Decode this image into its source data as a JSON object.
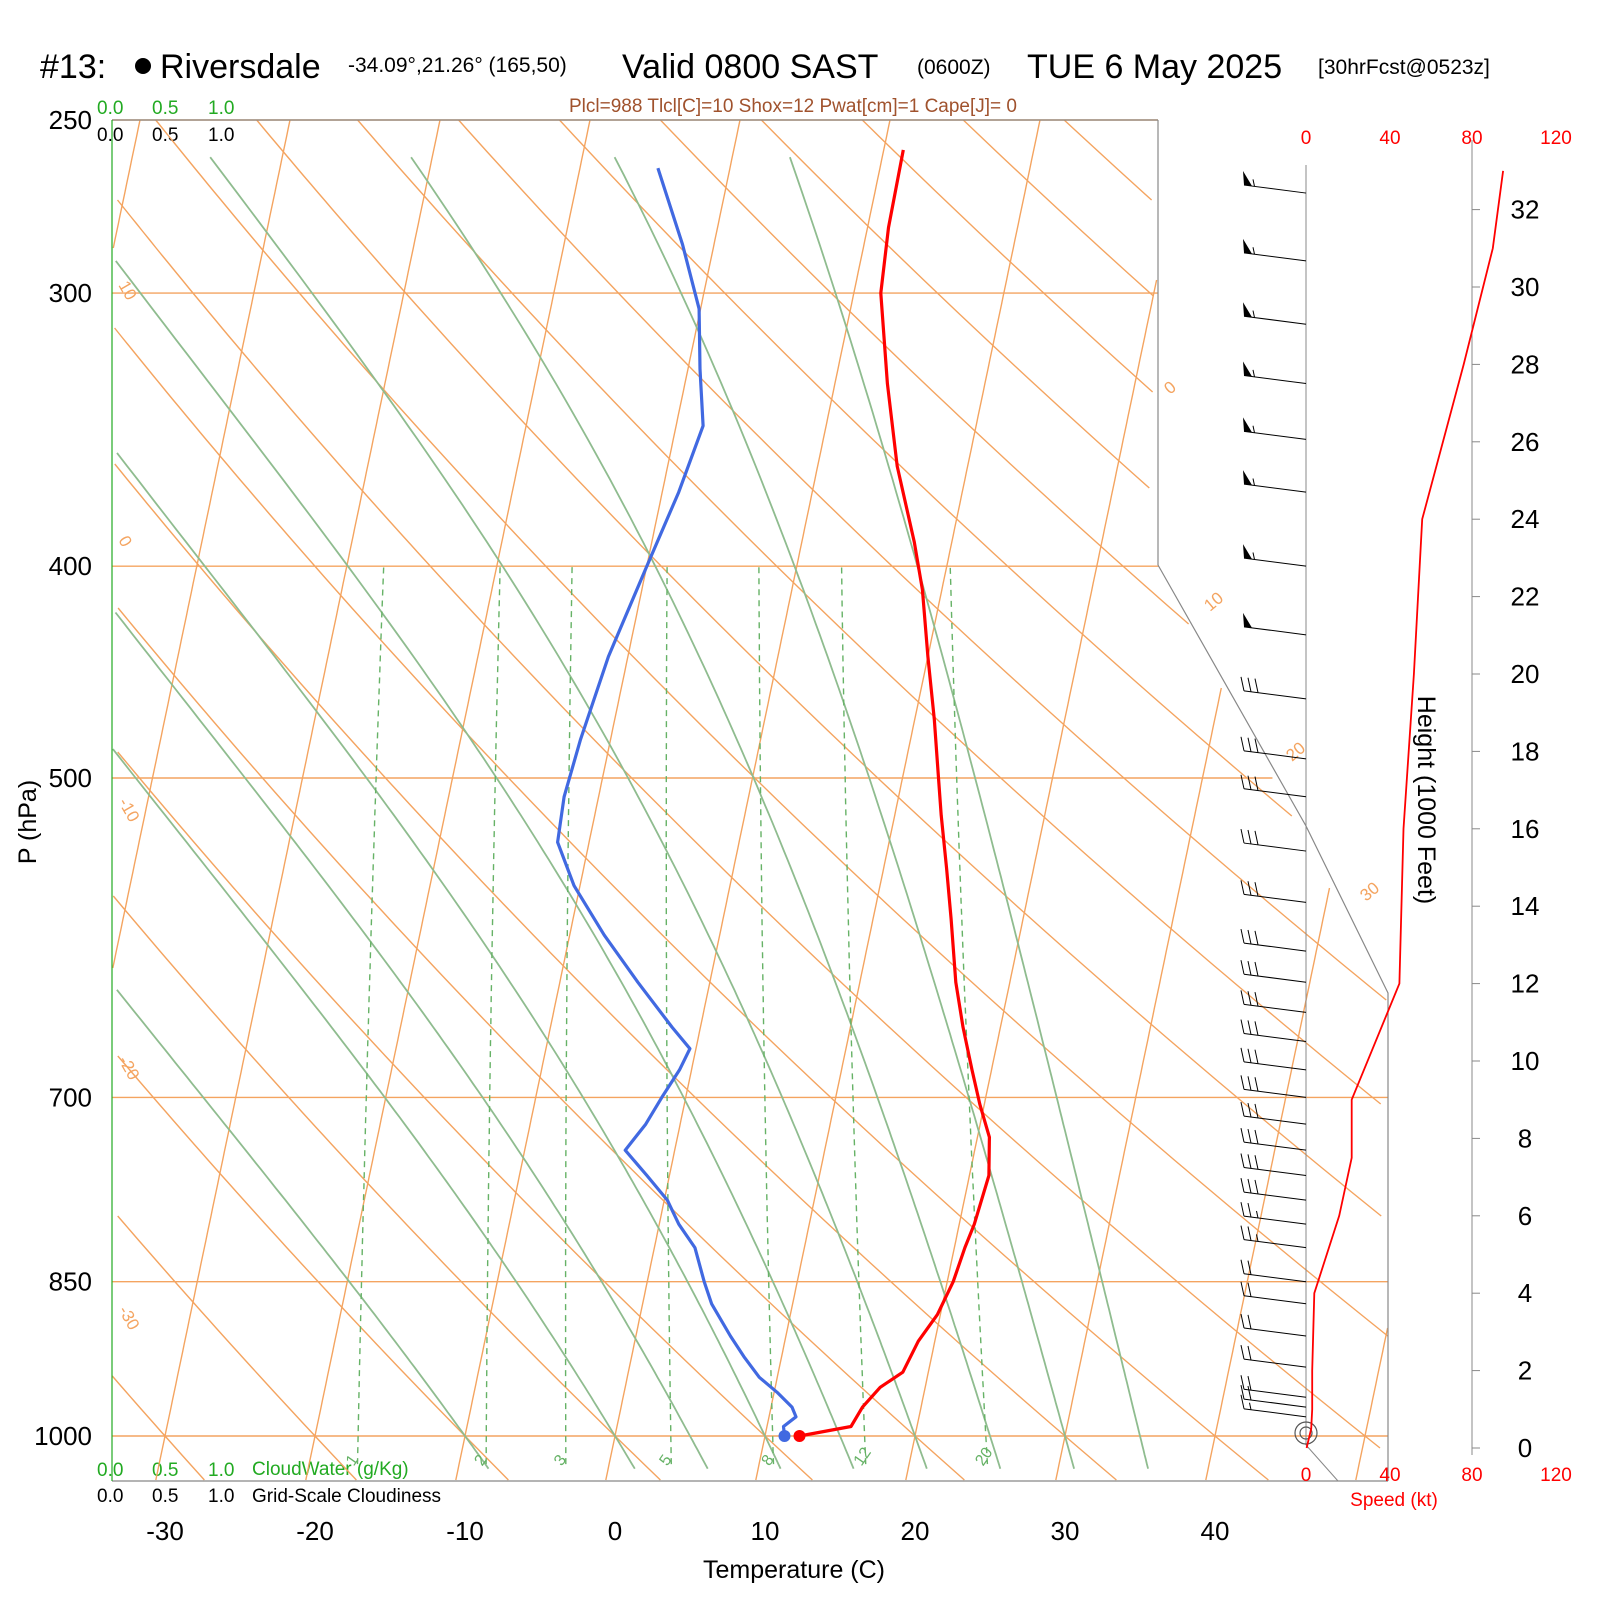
{
  "header": {
    "station_prefix": "#13:",
    "station_name": "Riversdale",
    "coords": "-34.09°,21.26° (165,50)",
    "valid_label": "Valid 0800 SAST",
    "zulu": "(0600Z)",
    "date": "TUE 6 May 2025",
    "forecast": "[30hrFcst@0523z]",
    "params": "Plcl=988 Tlcl[C]=10 Shox=12 Pwat[cm]=1 Cape[J]= 0"
  },
  "scales": {
    "cloudwater_ticks": [
      "0.0",
      "0.5",
      "1.0"
    ],
    "cloudiness_ticks": [
      "0.0",
      "0.5",
      "1.0"
    ],
    "cloudwater_label": "CloudWater (g/Kg)",
    "cloudiness_label": "Grid-Scale Cloudiness",
    "speed_ticks": [
      "0",
      "40",
      "80",
      "120"
    ],
    "speed_label": "Speed (kt)"
  },
  "axes": {
    "pressure_label": "P (hPa)",
    "temperature_label": "Temperature (C)",
    "height_label": "Height (1000 Feet)",
    "pressure_ticks": [
      250,
      300,
      400,
      500,
      700,
      850,
      1000
    ],
    "temperature_ticks": [
      -30,
      -20,
      -10,
      0,
      10,
      20,
      30,
      40
    ],
    "height_ticks": [
      0,
      2,
      4,
      6,
      8,
      10,
      12,
      14,
      16,
      18,
      20,
      22,
      24,
      26,
      28,
      30,
      32
    ]
  },
  "chart_data": {
    "type": "line",
    "series": [
      {
        "kind": "temperature",
        "color": "#ff0000",
        "points": [
          [
            1000,
            12.3
          ],
          [
            990,
            15.6
          ],
          [
            970,
            16.1
          ],
          [
            950,
            17.0
          ],
          [
            935,
            18.3
          ],
          [
            905,
            18.9
          ],
          [
            880,
            19.8
          ],
          [
            850,
            20.4
          ],
          [
            820,
            20.7
          ],
          [
            800,
            21.0
          ],
          [
            760,
            21.3
          ],
          [
            730,
            20.8
          ],
          [
            705,
            19.7
          ],
          [
            680,
            18.7
          ],
          [
            650,
            17.5
          ],
          [
            620,
            16.4
          ],
          [
            580,
            15.2
          ],
          [
            550,
            14.2
          ],
          [
            520,
            13.1
          ],
          [
            500,
            12.4
          ],
          [
            470,
            11.3
          ],
          [
            440,
            10.0
          ],
          [
            410,
            8.7
          ],
          [
            390,
            7.5
          ],
          [
            360,
            5.3
          ],
          [
            330,
            3.5
          ],
          [
            300,
            1.8
          ],
          [
            280,
            1.4
          ],
          [
            258,
            1.3
          ]
        ]
      },
      {
        "kind": "dewpoint",
        "color": "#4169e1",
        "points": [
          [
            1000,
            11.3
          ],
          [
            990,
            11.1
          ],
          [
            980,
            11.8
          ],
          [
            970,
            11.4
          ],
          [
            955,
            10.2
          ],
          [
            940,
            8.8
          ],
          [
            920,
            7.5
          ],
          [
            900,
            6.3
          ],
          [
            870,
            4.6
          ],
          [
            850,
            3.8
          ],
          [
            820,
            2.7
          ],
          [
            800,
            1.3
          ],
          [
            780,
            0.2
          ],
          [
            760,
            -1.5
          ],
          [
            740,
            -3.3
          ],
          [
            720,
            -2.3
          ],
          [
            700,
            -1.6
          ],
          [
            680,
            -0.8
          ],
          [
            665,
            -0.4
          ],
          [
            650,
            -1.9
          ],
          [
            620,
            -4.8
          ],
          [
            590,
            -7.7
          ],
          [
            560,
            -10.4
          ],
          [
            535,
            -12.1
          ],
          [
            510,
            -12.3
          ],
          [
            480,
            -12.0
          ],
          [
            440,
            -11.3
          ],
          [
            400,
            -10.0
          ],
          [
            370,
            -8.9
          ],
          [
            345,
            -8.2
          ],
          [
            325,
            -9.2
          ],
          [
            305,
            -10.1
          ],
          [
            285,
            -12.1
          ],
          [
            263,
            -14.8
          ]
        ]
      }
    ],
    "speed_profile": [
      [
        0,
        0.3
      ],
      [
        0.5,
        2.5
      ],
      [
        1,
        3
      ],
      [
        2,
        3
      ],
      [
        4,
        4
      ],
      [
        6,
        16
      ],
      [
        7.5,
        22
      ],
      [
        9,
        22
      ],
      [
        12,
        45
      ],
      [
        16,
        47
      ],
      [
        20,
        52
      ],
      [
        24,
        56
      ],
      [
        28,
        76
      ],
      [
        31,
        90
      ],
      [
        33,
        95
      ]
    ],
    "wind_barbs_knots": [
      [
        1000,
        0
      ],
      [
        980,
        15
      ],
      [
        970,
        20
      ],
      [
        960,
        20
      ],
      [
        930,
        20
      ],
      [
        900,
        20
      ],
      [
        870,
        20
      ],
      [
        850,
        20
      ],
      [
        820,
        25
      ],
      [
        800,
        25
      ],
      [
        780,
        30
      ],
      [
        760,
        30
      ],
      [
        740,
        30
      ],
      [
        720,
        30
      ],
      [
        700,
        30
      ],
      [
        680,
        30
      ],
      [
        660,
        30
      ],
      [
        640,
        30
      ],
      [
        620,
        30
      ],
      [
        600,
        30
      ],
      [
        570,
        30
      ],
      [
        540,
        30
      ],
      [
        510,
        30
      ],
      [
        490,
        30
      ],
      [
        460,
        30
      ],
      [
        430,
        50
      ],
      [
        400,
        55
      ],
      [
        370,
        55
      ],
      [
        350,
        55
      ],
      [
        330,
        55
      ],
      [
        310,
        55
      ],
      [
        290,
        55
      ],
      [
        270,
        55
      ]
    ],
    "isotherm_labels": [
      "10",
      "0",
      "-10",
      "-20",
      "-30",
      "0",
      "10",
      "20",
      "30"
    ],
    "mixing_ratio_labels": [
      "1",
      "2",
      "3",
      "5",
      "8",
      "12",
      "20"
    ],
    "xlim": [
      -30,
      45
    ],
    "ylim": [
      1000,
      250
    ]
  }
}
